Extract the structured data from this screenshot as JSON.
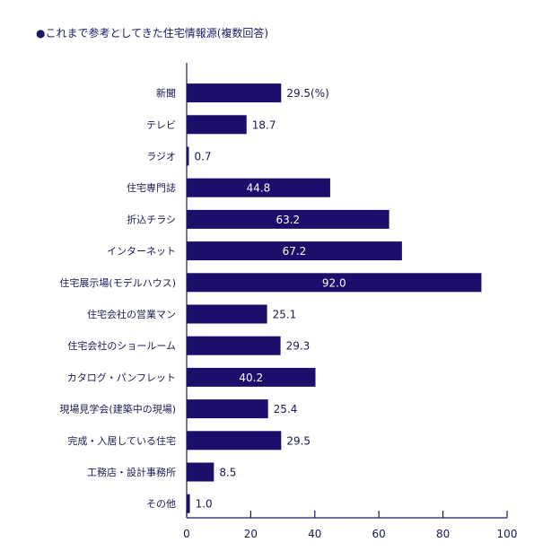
{
  "chart_data": {
    "type": "bar",
    "orientation": "horizontal",
    "title": "●これまで参考としてきた住宅情報源(複数回答)",
    "categories": [
      "新聞",
      "テレビ",
      "ラジオ",
      "住宅専門誌",
      "折込チラシ",
      "インターネット",
      "住宅展示場(モデルハウス)",
      "住宅会社の営業マン",
      "住宅会社のショールーム",
      "カタログ・パンフレット",
      "現場見学会(建築中の現場)",
      "完成・入居している住宅",
      "工務店・設計事務所",
      "その他"
    ],
    "values": [
      29.5,
      18.7,
      0.7,
      44.8,
      63.2,
      67.2,
      92.0,
      25.1,
      29.3,
      40.2,
      25.4,
      29.5,
      8.5,
      1.0
    ],
    "value_labels": [
      "29.5(%)",
      "18.7",
      "0.7",
      "44.8",
      "63.2",
      "67.2",
      "92.0",
      "25.1",
      "29.3",
      "40.2",
      "25.4",
      "29.5",
      "8.5",
      "1.0"
    ],
    "xlim": [
      0,
      100
    ],
    "xticks": [
      "0",
      "20",
      "40",
      "60",
      "80",
      "100"
    ],
    "xlabel": "",
    "ylabel": "",
    "grid": false,
    "bar_color": "#1c0f6b",
    "axis_color": "#1a1a60"
  }
}
